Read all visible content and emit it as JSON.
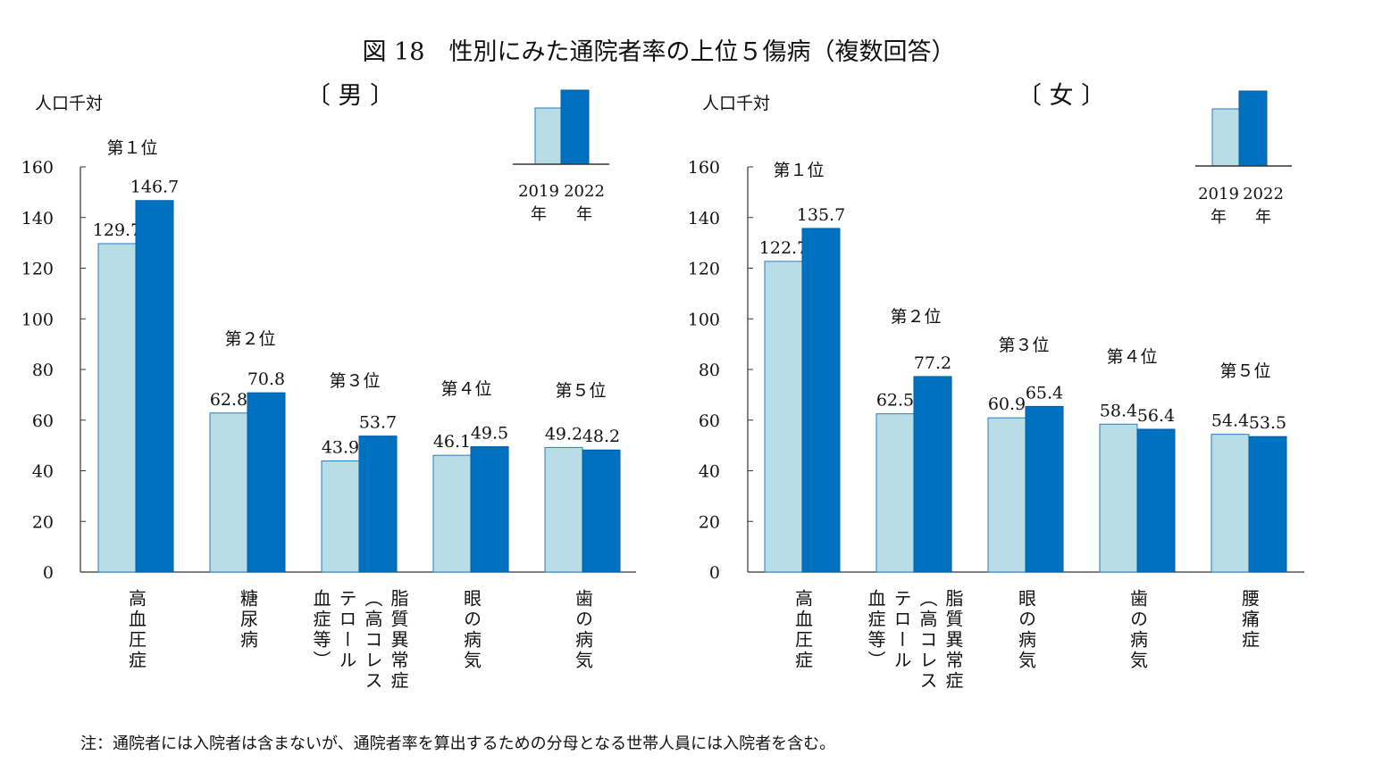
{
  "title": "図 18　性別にみた通院者率の上位５傷病（複数回答）",
  "note": "注：通院者には入院者は含まないが、通院者率を算出するための分母となる世帯人員には入院者を含む。",
  "colors": {
    "2019": "#b8dde7",
    "2022": "#0070c0"
  },
  "legend": {
    "labels": [
      "2019\n年",
      "2022\n年"
    ]
  },
  "chart_data": [
    {
      "type": "bar",
      "title": "〔 男 〕",
      "ylabel": "人口千対",
      "ylim": [
        0,
        160
      ],
      "yticks": [
        0,
        20,
        40,
        60,
        80,
        100,
        120,
        140,
        160
      ],
      "ranks": [
        "第１位",
        "第２位",
        "第３位",
        "第４位",
        "第５位"
      ],
      "categories": [
        "高血圧症",
        "糖尿病",
        "脂質異常症\n（高コレス\nテロール\n血症等）",
        "眼の病気",
        "歯の病気"
      ],
      "series": [
        {
          "name": "2019年",
          "values": [
            129.7,
            62.8,
            43.9,
            46.1,
            49.2
          ]
        },
        {
          "name": "2022年",
          "values": [
            146.7,
            70.8,
            53.7,
            49.5,
            48.2
          ]
        }
      ]
    },
    {
      "type": "bar",
      "title": "〔 女 〕",
      "ylabel": "人口千対",
      "ylim": [
        0,
        160
      ],
      "yticks": [
        0,
        20,
        40,
        60,
        80,
        100,
        120,
        140,
        160
      ],
      "ranks": [
        "第１位",
        "第２位",
        "第３位",
        "第４位",
        "第５位"
      ],
      "categories": [
        "高血圧症",
        "脂質異常症\n（高コレス\nテロール\n血症等）",
        "眼の病気",
        "歯の病気",
        "腰痛症"
      ],
      "series": [
        {
          "name": "2019年",
          "values": [
            122.7,
            62.5,
            60.9,
            58.4,
            54.4
          ]
        },
        {
          "name": "2022年",
          "values": [
            135.7,
            77.2,
            65.4,
            56.4,
            53.5
          ]
        }
      ]
    }
  ]
}
